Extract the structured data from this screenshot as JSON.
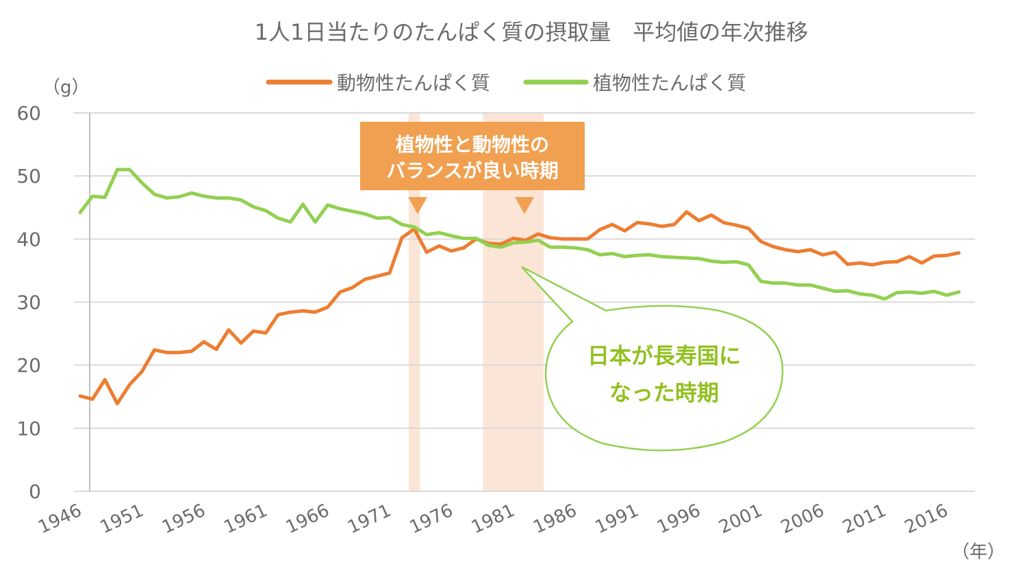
{
  "colors": {
    "animal": "#ed7d31",
    "plant": "#92d050",
    "band": "#fbe5d6",
    "callout_bg": "#f0a050",
    "bubble_stroke": "#92d050",
    "bubble_text": "#92c020",
    "grid": "#d9d9d9",
    "text": "#6b6b6b"
  },
  "chart_data": {
    "type": "line",
    "title": "1人1日当たりのたんぱく質の摂取量　平均値の年次推移",
    "ylabel": "（g）",
    "xlabel": "（年）",
    "ylim": [
      0,
      60
    ],
    "yticks": [
      "0",
      "10",
      "20",
      "30",
      "40",
      "50",
      "60"
    ],
    "xticks": [
      "1946",
      "1951",
      "1956",
      "1961",
      "1966",
      "1971",
      "1976",
      "1981",
      "1986",
      "1991",
      "1996",
      "2001",
      "2006",
      "2011",
      "2016"
    ],
    "xlim": [
      1945.5,
      2018.3
    ],
    "grid": true,
    "legend_position": "top",
    "series": [
      {
        "name": "動物性たんぱく質",
        "color": "#ed7d31",
        "x": [
          1946,
          1947,
          1948,
          1949,
          1950,
          1951,
          1952,
          1953,
          1954,
          1955,
          1956,
          1957,
          1958,
          1959,
          1960,
          1961,
          1962,
          1963,
          1964,
          1965,
          1966,
          1967,
          1968,
          1969,
          1970,
          1971,
          1972,
          1973,
          1974,
          1975,
          1976,
          1977,
          1978,
          1979,
          1980,
          1981,
          1982,
          1983,
          1984,
          1985,
          1986,
          1987,
          1988,
          1989,
          1990,
          1991,
          1992,
          1993,
          1994,
          1995,
          1996,
          1997,
          1998,
          1999,
          2000,
          2001,
          2002,
          2003,
          2004,
          2005,
          2006,
          2007,
          2008,
          2009,
          2010,
          2011,
          2012,
          2013,
          2014,
          2015,
          2016,
          2017
        ],
        "values": [
          15.1,
          14.6,
          17.7,
          13.9,
          16.9,
          19.0,
          22.4,
          22.0,
          22.0,
          22.2,
          23.7,
          22.5,
          25.6,
          23.5,
          25.4,
          25.1,
          28.0,
          28.4,
          28.6,
          28.4,
          29.2,
          31.6,
          32.3,
          33.6,
          34.1,
          34.6,
          40.2,
          41.6,
          37.9,
          38.9,
          38.1,
          38.6,
          40.0,
          39.3,
          39.2,
          40.1,
          39.8,
          40.8,
          40.2,
          40.0,
          40.0,
          40.0,
          41.5,
          42.3,
          41.3,
          42.6,
          42.4,
          42.0,
          42.3,
          44.3,
          42.9,
          43.8,
          42.6,
          42.2,
          41.7,
          39.6,
          38.8,
          38.3,
          38.0,
          38.3,
          37.5,
          37.9,
          36.0,
          36.2,
          35.9,
          36.3,
          36.4,
          37.2,
          36.2,
          37.3,
          37.4,
          37.8
        ]
      },
      {
        "name": "植物性たんぱく質",
        "color": "#92d050",
        "x": [
          1946,
          1947,
          1948,
          1949,
          1950,
          1951,
          1952,
          1953,
          1954,
          1955,
          1956,
          1957,
          1958,
          1959,
          1960,
          1961,
          1962,
          1963,
          1964,
          1965,
          1966,
          1967,
          1968,
          1969,
          1970,
          1971,
          1972,
          1973,
          1974,
          1975,
          1976,
          1977,
          1978,
          1979,
          1980,
          1981,
          1982,
          1983,
          1984,
          1985,
          1986,
          1987,
          1988,
          1989,
          1990,
          1991,
          1992,
          1993,
          1994,
          1995,
          1996,
          1997,
          1998,
          1999,
          2000,
          2001,
          2002,
          2003,
          2004,
          2005,
          2006,
          2007,
          2008,
          2009,
          2010,
          2011,
          2012,
          2013,
          2014,
          2015,
          2016,
          2017
        ],
        "values": [
          44.2,
          46.8,
          46.6,
          51.0,
          51.0,
          48.9,
          47.1,
          46.5,
          46.7,
          47.3,
          46.8,
          46.5,
          46.5,
          46.2,
          45.1,
          44.5,
          43.3,
          42.7,
          45.5,
          42.7,
          45.4,
          44.8,
          44.4,
          44.0,
          43.3,
          43.4,
          42.3,
          41.9,
          40.7,
          41.0,
          40.5,
          40.1,
          40.1,
          39.0,
          38.7,
          39.4,
          39.5,
          39.8,
          38.7,
          38.7,
          38.6,
          38.3,
          37.5,
          37.7,
          37.2,
          37.4,
          37.5,
          37.2,
          37.1,
          37.0,
          36.9,
          36.5,
          36.3,
          36.4,
          35.9,
          33.3,
          33.0,
          33.0,
          32.7,
          32.7,
          32.2,
          31.7,
          31.8,
          31.3,
          31.1,
          30.5,
          31.5,
          31.6,
          31.4,
          31.7,
          31.1,
          31.6
        ]
      }
    ],
    "bands": [
      {
        "from": 1973,
        "to": 1973
      },
      {
        "from": 1979,
        "to": 1983
      }
    ],
    "annotations": {
      "callout_line1": "植物性と動物性の",
      "callout_line2": "バランスが良い時期",
      "bubble_line1": "日本が長寿国に",
      "bubble_line2": "なった時期"
    }
  }
}
